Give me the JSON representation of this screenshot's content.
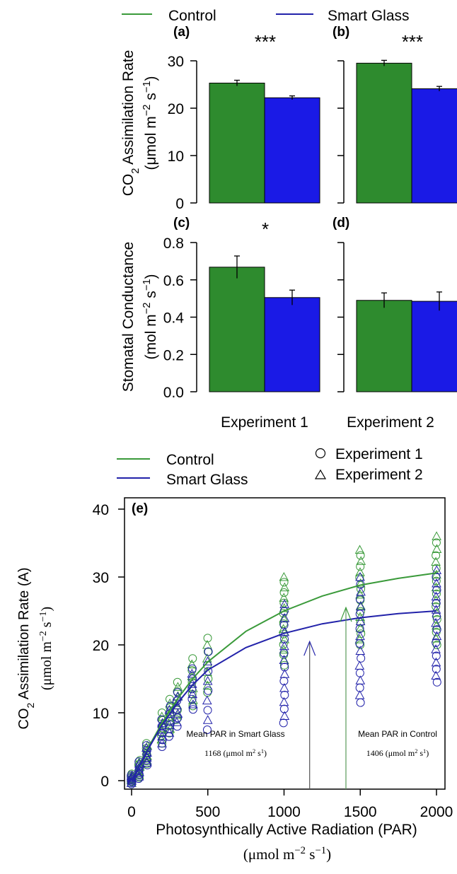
{
  "colors": {
    "control": "#2e8b2e",
    "smart_glass": "#1a1ae6",
    "control_line": "#3a9a3a",
    "smart_glass_line": "#2222aa"
  },
  "top_legend": {
    "control": "Control",
    "smart_glass": "Smart Glass"
  },
  "panels_ylabels": {
    "top": [
      "CO",
      "2",
      " Assimilation Rate",
      "(μmol m",
      "−2",
      " s",
      "−1",
      ")"
    ],
    "bottom": [
      "Stomatal Conductance",
      "(mol m",
      "−2",
      " s",
      "−1",
      ")"
    ]
  },
  "x_groups": [
    "Experiment 1",
    "Experiment 2"
  ],
  "bottom_legend": {
    "control": "Control",
    "smart_glass": "Smart Glass",
    "exp1": "Experiment 1",
    "exp2": "Experiment 2"
  },
  "annotations": {
    "smart_line1": "Mean PAR in Smart Glass",
    "smart_line2": "1168 (μmol m",
    "smart_line2b": "2",
    "smart_line2c": " s",
    "smart_line2d": "1",
    "smart_line2e": ")",
    "control_line1": "Mean PAR in Control",
    "control_line2": "1406 (μmol m",
    "control_line2b": "2",
    "control_line2c": " s",
    "control_line2d": "1",
    "control_line2e": ")"
  },
  "e_labels": {
    "xlabel": "Photosynthically Active Radiation (PAR)",
    "xunit": [
      "(μmol m",
      "−2",
      " s",
      "−1",
      ")"
    ],
    "ylabel": [
      "CO",
      "2",
      " Assimilation Rate (A)"
    ],
    "yunit": [
      "(μmol m",
      "−2",
      " s",
      "−1",
      ")"
    ]
  },
  "chart_data": [
    {
      "type": "bar",
      "panel": "(a)",
      "categories": [
        "Control",
        "Smart Glass"
      ],
      "values": [
        25.3,
        22.2
      ],
      "errors": [
        0.6,
        0.4
      ],
      "ylim": [
        0,
        30
      ],
      "yticks": [
        0,
        10,
        20,
        30
      ],
      "significance": "***"
    },
    {
      "type": "bar",
      "panel": "(b)",
      "categories": [
        "Control",
        "Smart Glass"
      ],
      "values": [
        29.5,
        24.1
      ],
      "errors": [
        0.6,
        0.5
      ],
      "ylim": [
        0,
        30
      ],
      "yticks": [
        0,
        10,
        20,
        30
      ],
      "significance": "***"
    },
    {
      "type": "bar",
      "panel": "(c)",
      "categories": [
        "Control",
        "Smart Glass"
      ],
      "values": [
        0.668,
        0.505
      ],
      "errors": [
        0.06,
        0.04
      ],
      "ylim": [
        0,
        0.8
      ],
      "yticks": [
        "0.0",
        "0.2",
        "0.4",
        "0.6",
        "0.8"
      ],
      "significance": "*"
    },
    {
      "type": "bar",
      "panel": "(d)",
      "categories": [
        "Control",
        "Smart Glass"
      ],
      "values": [
        0.49,
        0.485
      ],
      "errors": [
        0.04,
        0.05
      ],
      "ylim": [
        0,
        0.8
      ],
      "yticks": [
        "0.0",
        "0.2",
        "0.4",
        "0.6",
        "0.8"
      ],
      "significance": ""
    },
    {
      "type": "scatter",
      "panel": "(e)",
      "xlim": [
        0,
        2000
      ],
      "ylim": [
        0,
        40
      ],
      "xticks": [
        0,
        500,
        1000,
        1500,
        2000
      ],
      "yticks": [
        0,
        10,
        20,
        30,
        40
      ],
      "fit_curves": [
        {
          "name": "Control",
          "x": [
            0,
            50,
            100,
            200,
            300,
            400,
            500,
            750,
            1000,
            1250,
            1500,
            1750,
            2000
          ],
          "y": [
            0.0,
            2.3,
            4.5,
            8.5,
            12.0,
            15.0,
            17.5,
            22.0,
            25.0,
            27.2,
            28.8,
            29.8,
            30.6
          ]
        },
        {
          "name": "Smart Glass",
          "x": [
            0,
            50,
            100,
            200,
            300,
            400,
            500,
            750,
            1000,
            1250,
            1500,
            1750,
            2000
          ],
          "y": [
            0.0,
            2.2,
            4.3,
            8.2,
            11.4,
            14.1,
            16.3,
            19.6,
            21.7,
            23.1,
            24.0,
            24.6,
            25.0
          ]
        }
      ],
      "point_clusters": [
        {
          "x": 0,
          "control_range": [
            -0.5,
            1.0
          ],
          "smart_range": [
            -0.5,
            0.8
          ]
        },
        {
          "x": 50,
          "control_range": [
            0.5,
            3.0
          ],
          "smart_range": [
            0.3,
            2.8
          ]
        },
        {
          "x": 100,
          "control_range": [
            2.5,
            5.5
          ],
          "smart_range": [
            2.3,
            5.2
          ]
        },
        {
          "x": 200,
          "control_range": [
            5.5,
            10.0
          ],
          "smart_range": [
            5.0,
            9.0
          ]
        },
        {
          "x": 250,
          "control_range": [
            7.0,
            12.0
          ],
          "smart_range": [
            6.5,
            11.0
          ]
        },
        {
          "x": 300,
          "control_range": [
            9.0,
            14.5
          ],
          "smart_range": [
            8.0,
            13.0
          ]
        },
        {
          "x": 400,
          "control_range": [
            11.0,
            18.0
          ],
          "smart_range": [
            10.5,
            16.5
          ]
        },
        {
          "x": 500,
          "control_range": [
            13.0,
            21.0
          ],
          "smart_range": [
            7.5,
            19.0
          ]
        },
        {
          "x": 1000,
          "control_range": [
            17.0,
            30.0
          ],
          "smart_range": [
            8.5,
            26.0
          ]
        },
        {
          "x": 1500,
          "control_range": [
            20.0,
            34.0
          ],
          "smart_range": [
            11.5,
            30.0
          ]
        },
        {
          "x": 2000,
          "control_range": [
            20.0,
            36.0
          ],
          "smart_range": [
            14.5,
            31.0
          ]
        }
      ],
      "mean_par_markers": [
        {
          "name": "Smart Glass",
          "x": 1168,
          "arrow_tip_y": 20.5
        },
        {
          "name": "Control",
          "x": 1406,
          "arrow_tip_y": 25.5
        }
      ]
    }
  ]
}
